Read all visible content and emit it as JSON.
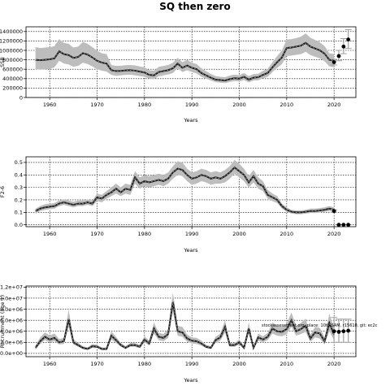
{
  "title": "SQ then zero",
  "note": "stockassessment.org, place: 10th SAM, r15610, git: ec2c",
  "chart_data": [
    {
      "type": "line",
      "xlabel": "Years",
      "ylabel": "SSB",
      "xlim": [
        1955,
        2024.6
      ],
      "ylim": [
        0,
        1500000
      ],
      "x_ticks": [
        1960,
        1970,
        1980,
        1990,
        2000,
        2010,
        2020
      ],
      "x_tick_labels": [
        "1960",
        "1970",
        "1980",
        "1990",
        "2000",
        "2010",
        "2020"
      ],
      "y_ticks": [
        0,
        200000,
        400000,
        600000,
        800000,
        1000000,
        1200000,
        1400000
      ],
      "y_tick_labels": [
        "0",
        "200000",
        "400000",
        "600000",
        "800000",
        "1000000",
        "1200000",
        "1400000"
      ],
      "grid": true,
      "x": [
        1957,
        1958,
        1959,
        1960,
        1961,
        1962,
        1963,
        1964,
        1965,
        1966,
        1967,
        1968,
        1969,
        1970,
        1971,
        1972,
        1973,
        1974,
        1975,
        1976,
        1977,
        1978,
        1979,
        1980,
        1981,
        1982,
        1983,
        1984,
        1985,
        1986,
        1987,
        1988,
        1989,
        1990,
        1991,
        1992,
        1993,
        1994,
        1995,
        1996,
        1997,
        1998,
        1999,
        2000,
        2001,
        2002,
        2003,
        2004,
        2005,
        2006,
        2007,
        2008,
        2009,
        2010,
        2011,
        2012,
        2013,
        2014,
        2015,
        2016,
        2017,
        2018,
        2019,
        2020
      ],
      "estimate": [
        800000,
        790000,
        800000,
        810000,
        830000,
        980000,
        920000,
        900000,
        840000,
        860000,
        940000,
        910000,
        850000,
        780000,
        740000,
        720000,
        580000,
        560000,
        565000,
        575000,
        580000,
        570000,
        550000,
        530000,
        480000,
        470000,
        540000,
        560000,
        580000,
        620000,
        720000,
        630000,
        680000,
        630000,
        600000,
        520000,
        470000,
        420000,
        380000,
        370000,
        360000,
        390000,
        410000,
        400000,
        440000,
        380000,
        420000,
        430000,
        480000,
        520000,
        640000,
        750000,
        850000,
        1050000,
        1060000,
        1080000,
        1100000,
        1160000,
        1080000,
        1040000,
        1000000,
        930000,
        800000,
        780000
      ],
      "lower": [
        600000,
        590000,
        600000,
        610000,
        640000,
        780000,
        720000,
        700000,
        650000,
        670000,
        740000,
        710000,
        660000,
        600000,
        570000,
        550000,
        480000,
        460000,
        470000,
        480000,
        485000,
        470000,
        455000,
        440000,
        400000,
        390000,
        450000,
        470000,
        490000,
        520000,
        620000,
        540000,
        580000,
        540000,
        510000,
        440000,
        400000,
        360000,
        325000,
        315000,
        305000,
        330000,
        350000,
        340000,
        370000,
        320000,
        360000,
        365000,
        405000,
        440000,
        540000,
        630000,
        710000,
        880000,
        890000,
        905000,
        920000,
        970000,
        900000,
        865000,
        830000,
        770000,
        660000,
        640000
      ],
      "upper": [
        1070000,
        1050000,
        1060000,
        1070000,
        1090000,
        1240000,
        1160000,
        1140000,
        1060000,
        1080000,
        1180000,
        1140000,
        1070000,
        990000,
        940000,
        920000,
        690000,
        670000,
        675000,
        685000,
        690000,
        680000,
        660000,
        640000,
        580000,
        570000,
        650000,
        670000,
        690000,
        740000,
        840000,
        750000,
        800000,
        740000,
        710000,
        620000,
        560000,
        500000,
        455000,
        440000,
        430000,
        465000,
        485000,
        475000,
        520000,
        455000,
        495000,
        505000,
        565000,
        610000,
        750000,
        880000,
        1000000,
        1230000,
        1240000,
        1260000,
        1290000,
        1360000,
        1270000,
        1220000,
        1170000,
        1090000,
        940000,
        920000
      ],
      "projection": {
        "x": [
          2020,
          2021,
          2022,
          2023
        ],
        "estimate": [
          750000,
          880000,
          1080000,
          1230000
        ],
        "lower": [
          690000,
          780000,
          930000,
          1040000
        ],
        "upper": [
          810000,
          1000000,
          1250000,
          1440000
        ]
      }
    },
    {
      "type": "line",
      "xlabel": "Years",
      "ylabel": "F2-6",
      "xlim": [
        1955,
        2024.6
      ],
      "ylim": [
        -0.015,
        0.545
      ],
      "x_ticks": [
        1960,
        1970,
        1980,
        1990,
        2000,
        2010,
        2020
      ],
      "x_tick_labels": [
        "1960",
        "1970",
        "1980",
        "1990",
        "2000",
        "2010",
        "2020"
      ],
      "y_ticks": [
        0.0,
        0.1,
        0.2,
        0.3,
        0.4,
        0.5
      ],
      "y_tick_labels": [
        "0.0",
        "0.1",
        "0.2",
        "0.3",
        "0.4",
        "0.5"
      ],
      "grid": true,
      "x": [
        1957,
        1958,
        1959,
        1960,
        1961,
        1962,
        1963,
        1964,
        1965,
        1966,
        1967,
        1968,
        1969,
        1970,
        1971,
        1972,
        1973,
        1974,
        1975,
        1976,
        1977,
        1978,
        1979,
        1980,
        1981,
        1982,
        1983,
        1984,
        1985,
        1986,
        1987,
        1988,
        1989,
        1990,
        1991,
        1992,
        1993,
        1994,
        1995,
        1996,
        1997,
        1998,
        1999,
        2000,
        2001,
        2002,
        2003,
        2004,
        2005,
        2006,
        2007,
        2008,
        2009,
        2010,
        2011,
        2012,
        2013,
        2014,
        2015,
        2016,
        2017,
        2018,
        2019,
        2020
      ],
      "estimate": [
        0.11,
        0.13,
        0.14,
        0.145,
        0.15,
        0.17,
        0.18,
        0.17,
        0.16,
        0.17,
        0.17,
        0.18,
        0.17,
        0.22,
        0.21,
        0.24,
        0.26,
        0.29,
        0.26,
        0.29,
        0.28,
        0.38,
        0.33,
        0.35,
        0.34,
        0.35,
        0.36,
        0.35,
        0.37,
        0.42,
        0.45,
        0.44,
        0.4,
        0.37,
        0.38,
        0.4,
        0.39,
        0.37,
        0.38,
        0.37,
        0.39,
        0.42,
        0.46,
        0.43,
        0.4,
        0.34,
        0.39,
        0.33,
        0.31,
        0.24,
        0.22,
        0.2,
        0.15,
        0.12,
        0.105,
        0.1,
        0.1,
        0.105,
        0.11,
        0.11,
        0.115,
        0.12,
        0.13,
        0.12
      ],
      "lower": [
        0.09,
        0.11,
        0.12,
        0.125,
        0.13,
        0.15,
        0.16,
        0.15,
        0.14,
        0.15,
        0.15,
        0.16,
        0.15,
        0.19,
        0.18,
        0.21,
        0.23,
        0.25,
        0.23,
        0.25,
        0.24,
        0.33,
        0.29,
        0.31,
        0.3,
        0.31,
        0.32,
        0.31,
        0.33,
        0.37,
        0.4,
        0.39,
        0.35,
        0.32,
        0.33,
        0.35,
        0.34,
        0.32,
        0.33,
        0.33,
        0.34,
        0.37,
        0.41,
        0.38,
        0.35,
        0.3,
        0.34,
        0.29,
        0.27,
        0.21,
        0.19,
        0.175,
        0.13,
        0.105,
        0.09,
        0.085,
        0.085,
        0.09,
        0.095,
        0.095,
        0.1,
        0.105,
        0.11,
        0.1
      ],
      "upper": [
        0.13,
        0.15,
        0.165,
        0.17,
        0.175,
        0.195,
        0.205,
        0.195,
        0.185,
        0.195,
        0.195,
        0.205,
        0.195,
        0.25,
        0.24,
        0.27,
        0.3,
        0.33,
        0.3,
        0.33,
        0.32,
        0.43,
        0.38,
        0.4,
        0.39,
        0.4,
        0.41,
        0.4,
        0.42,
        0.47,
        0.51,
        0.5,
        0.45,
        0.42,
        0.43,
        0.45,
        0.44,
        0.42,
        0.43,
        0.42,
        0.44,
        0.47,
        0.52,
        0.49,
        0.45,
        0.39,
        0.44,
        0.38,
        0.35,
        0.28,
        0.25,
        0.23,
        0.17,
        0.14,
        0.12,
        0.115,
        0.115,
        0.12,
        0.13,
        0.13,
        0.135,
        0.14,
        0.15,
        0.14
      ],
      "projection": {
        "x": [
          2020,
          2021,
          2022,
          2023
        ],
        "estimate": [
          0.11,
          0.0,
          0.0,
          0.0
        ],
        "lower": [
          0.1,
          0.0,
          0.0,
          0.0
        ],
        "upper": [
          0.12,
          0.0,
          0.0,
          0.0
        ]
      }
    },
    {
      "type": "line",
      "xlabel": "Years",
      "ylabel": "Recruitment (age 1)",
      "xlim": [
        1955,
        2024.6
      ],
      "ylim": [
        -600000,
        12200000
      ],
      "x_ticks": [
        1960,
        1970,
        1980,
        1990,
        2000,
        2010,
        2020
      ],
      "x_tick_labels": [
        "1960",
        "1970",
        "1980",
        "1990",
        "2000",
        "2010",
        "2020"
      ],
      "y_ticks": [
        0,
        2000000,
        4000000,
        6000000,
        8000000,
        10000000,
        12000000
      ],
      "y_tick_labels": [
        "0.0e+00",
        "2.0e+06",
        "4.0e+06",
        "6.0e+06",
        "8.0e+06",
        "1.0e+07",
        "1.2e+07"
      ],
      "grid": true,
      "x": [
        1957,
        1958,
        1959,
        1960,
        1961,
        1962,
        1963,
        1964,
        1965,
        1966,
        1967,
        1968,
        1969,
        1970,
        1971,
        1972,
        1973,
        1974,
        1975,
        1976,
        1977,
        1978,
        1979,
        1980,
        1981,
        1982,
        1983,
        1984,
        1985,
        1986,
        1987,
        1988,
        1989,
        1990,
        1991,
        1992,
        1993,
        1994,
        1995,
        1996,
        1997,
        1998,
        1999,
        2000,
        2001,
        2002,
        2003,
        2004,
        2005,
        2006,
        2007,
        2008,
        2009,
        2010,
        2011,
        2012,
        2013,
        2014,
        2015,
        2016,
        2017,
        2018,
        2019,
        2020
      ],
      "estimate": [
        1000000,
        2200000,
        3000000,
        2500000,
        2800000,
        2000000,
        2200000,
        6200000,
        2000000,
        1500000,
        1000000,
        800000,
        1300000,
        1200000,
        800000,
        800000,
        3200000,
        2400000,
        1500000,
        1000000,
        1500000,
        1500000,
        1200000,
        2500000,
        1800000,
        4500000,
        3000000,
        2800000,
        3500000,
        9300000,
        4000000,
        3800000,
        2700000,
        2300000,
        2200000,
        1800000,
        1200000,
        1000000,
        2400000,
        2900000,
        4800000,
        1500000,
        1500000,
        2000000,
        1000000,
        4500000,
        1000000,
        2900000,
        2500000,
        3000000,
        4500000,
        4000000,
        3900000,
        4400000,
        6000000,
        4000000,
        4400000,
        5000000,
        2700000,
        3800000,
        3600000,
        2200000,
        5500000,
        3400000
      ],
      "lower": [
        700000,
        1700000,
        2400000,
        2000000,
        2200000,
        1600000,
        1700000,
        4800000,
        1600000,
        1200000,
        800000,
        600000,
        1000000,
        950000,
        600000,
        600000,
        2500000,
        1900000,
        1200000,
        800000,
        1200000,
        1200000,
        950000,
        2000000,
        1400000,
        3600000,
        2400000,
        2200000,
        2800000,
        7600000,
        3200000,
        3000000,
        2100000,
        1800000,
        1700000,
        1400000,
        950000,
        800000,
        1900000,
        2300000,
        3800000,
        1200000,
        1200000,
        1600000,
        800000,
        3600000,
        800000,
        2300000,
        2000000,
        2400000,
        3600000,
        3200000,
        3100000,
        3500000,
        4800000,
        3200000,
        3500000,
        3900000,
        2100000,
        2900000,
        2700000,
        1600000,
        4000000,
        2400000
      ],
      "upper": [
        1400000,
        2900000,
        3800000,
        3200000,
        3600000,
        2600000,
        2800000,
        7900000,
        2600000,
        1900000,
        1300000,
        1050000,
        1700000,
        1550000,
        1050000,
        1050000,
        4000000,
        3000000,
        1900000,
        1300000,
        1900000,
        1900000,
        1550000,
        3100000,
        2300000,
        5600000,
        3700000,
        3500000,
        4400000,
        11000000,
        5000000,
        4800000,
        3400000,
        2900000,
        2800000,
        2300000,
        1550000,
        1300000,
        3000000,
        3600000,
        6000000,
        1900000,
        1900000,
        2500000,
        1300000,
        5600000,
        1300000,
        3600000,
        3100000,
        3700000,
        5600000,
        5000000,
        4800000,
        5400000,
        7400000,
        5000000,
        5500000,
        6300000,
        3400000,
        4800000,
        4600000,
        2900000,
        7200000,
        4600000
      ],
      "projection": {
        "x": [
          2020,
          2021,
          2022,
          2023
        ],
        "estimate": [
          4000000,
          3900000,
          4000000,
          4100000
        ],
        "lower": [
          2000000,
          2000000,
          2000000,
          2000000
        ],
        "upper": [
          6500000,
          6200000,
          6200000,
          6200000
        ]
      }
    }
  ]
}
